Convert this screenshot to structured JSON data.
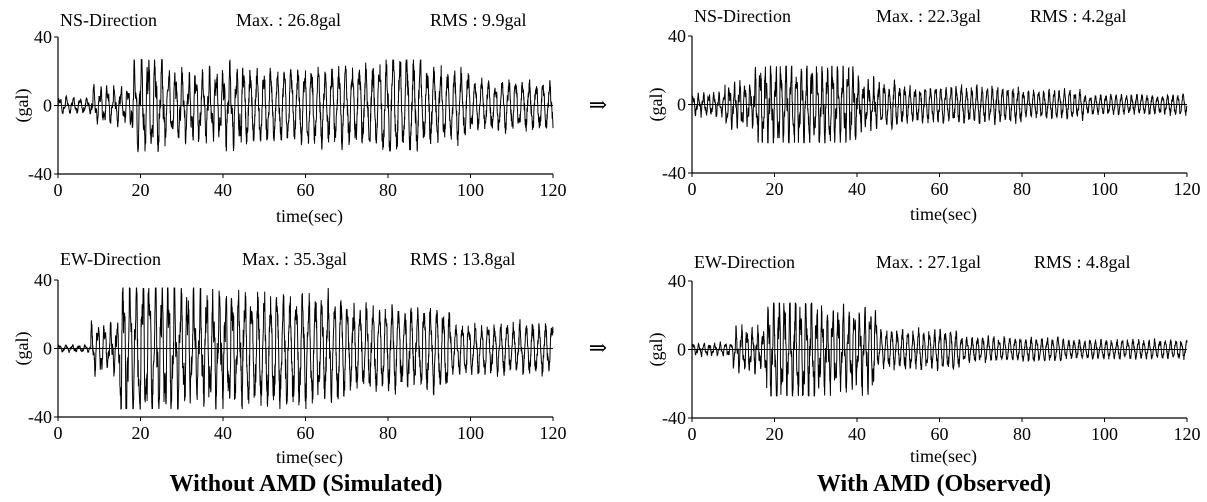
{
  "footer": {
    "left": "Without AMD (Simulated)",
    "right": "With AMD (Observed)"
  },
  "arrow_glyph": "⇒",
  "chart_data": [
    {
      "type": "line",
      "id": "ns-without",
      "title": "NS-Direction",
      "max_text": "Max. : 26.8gal",
      "rms_text": "RMS :   9.9gal",
      "xlabel": "time(sec)",
      "ylabel": "(gal)",
      "xlim": [
        0,
        120
      ],
      "ylim": [
        -40,
        40
      ],
      "xticks": [
        0,
        20,
        40,
        60,
        80,
        100,
        120
      ],
      "yticks": [
        -40,
        0,
        40
      ],
      "series": [
        {
          "max": 26.8,
          "rms": 9.9
        }
      ]
    },
    {
      "type": "line",
      "id": "ns-with",
      "title": "NS-Direction",
      "max_text": "Max. : 22.3gal",
      "rms_text": "RMS :    4.2gal",
      "xlabel": "time(sec)",
      "ylabel": "(gal)",
      "xlim": [
        0,
        120
      ],
      "ylim": [
        -40,
        40
      ],
      "xticks": [
        0,
        20,
        40,
        60,
        80,
        100,
        120
      ],
      "yticks": [
        -40,
        0,
        40
      ],
      "series": [
        {
          "max": 22.3,
          "rms": 4.2
        }
      ]
    },
    {
      "type": "line",
      "id": "ew-without",
      "title": "EW-Direction",
      "max_text": "Max. : 35.3gal",
      "rms_text": "RMS : 13.8gal",
      "xlabel": "time(sec)",
      "ylabel": "(gal)",
      "xlim": [
        0,
        120
      ],
      "ylim": [
        -40,
        40
      ],
      "xticks": [
        0,
        20,
        40,
        60,
        80,
        100,
        120
      ],
      "yticks": [
        -40,
        0,
        40
      ],
      "series": [
        {
          "max": 35.3,
          "rms": 13.8
        }
      ]
    },
    {
      "type": "line",
      "id": "ew-with",
      "title": "EW-Direction",
      "max_text": "Max. : 27.1gal",
      "rms_text": "RMS :    4.8gal",
      "xlabel": "time(sec)",
      "ylabel": "(gal)",
      "xlim": [
        0,
        120
      ],
      "ylim": [
        -40,
        40
      ],
      "xticks": [
        0,
        20,
        40,
        60,
        80,
        100,
        120
      ],
      "yticks": [
        -40,
        0,
        40
      ],
      "series": [
        {
          "max": 27.1,
          "rms": 4.8
        }
      ]
    }
  ]
}
